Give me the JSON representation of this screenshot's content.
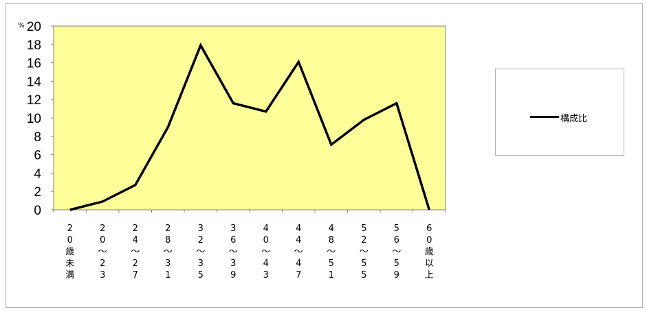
{
  "chart_data": {
    "type": "line",
    "y_unit": "%",
    "ylim": [
      0,
      20
    ],
    "yticks": [
      0,
      2,
      4,
      6,
      8,
      10,
      12,
      14,
      16,
      18,
      20
    ],
    "categories": [
      "20歳未満",
      "20〜23",
      "24〜27",
      "28〜31",
      "32〜35",
      "36〜39",
      "40〜43",
      "44〜47",
      "48〜51",
      "52〜55",
      "56〜59",
      "60歳以上"
    ],
    "category_label_chars": [
      [
        "2",
        "0",
        "歳",
        "未",
        "満"
      ],
      [
        "2",
        "0",
        "〜",
        "2",
        "3"
      ],
      [
        "2",
        "4",
        "〜",
        "2",
        "7"
      ],
      [
        "2",
        "8",
        "〜",
        "3",
        "1"
      ],
      [
        "3",
        "2",
        "〜",
        "3",
        "5"
      ],
      [
        "3",
        "6",
        "〜",
        "3",
        "9"
      ],
      [
        "4",
        "0",
        "〜",
        "4",
        "3"
      ],
      [
        "4",
        "4",
        "〜",
        "4",
        "7"
      ],
      [
        "4",
        "8",
        "〜",
        "5",
        "1"
      ],
      [
        "5",
        "2",
        "〜",
        "5",
        "5"
      ],
      [
        "5",
        "6",
        "〜",
        "5",
        "9"
      ],
      [
        "6",
        "0",
        "歳",
        "以",
        "上"
      ]
    ],
    "series": [
      {
        "name": "構成比",
        "values": [
          0,
          0.9,
          2.7,
          9.0,
          17.9,
          11.6,
          10.7,
          16.1,
          7.1,
          9.8,
          11.6,
          0
        ],
        "color": "#000000"
      }
    ],
    "plot_background": "#ffff99",
    "grid": false,
    "legend_position": "right"
  }
}
